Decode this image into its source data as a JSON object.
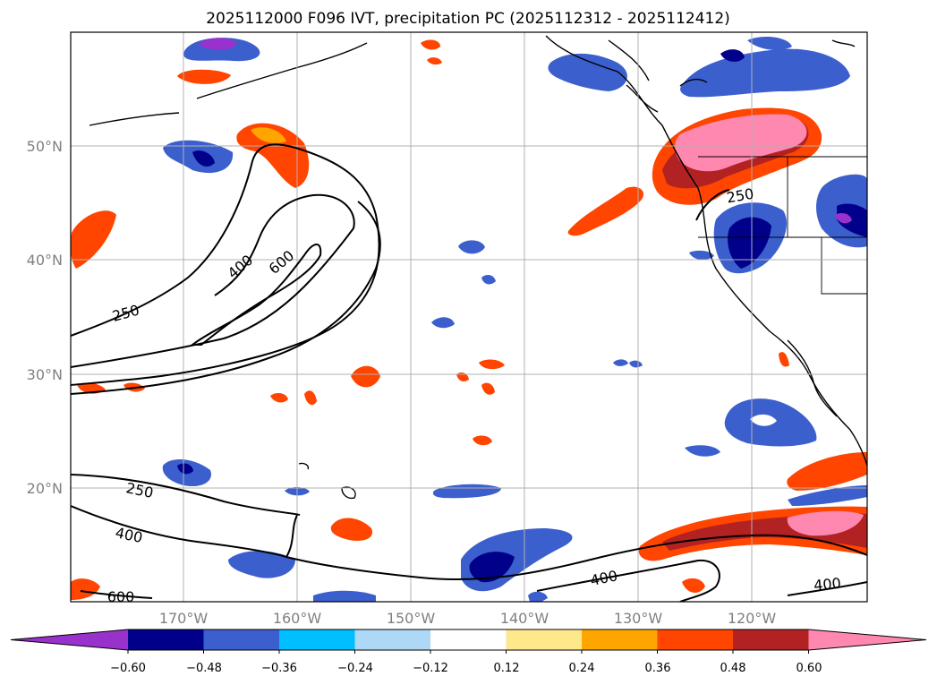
{
  "title": "2025112000 F096 IVT, precipitation PC (2025112312 - 2025112412)",
  "map": {
    "lon_labels": [
      "170°W",
      "160°W",
      "150°W",
      "140°W",
      "130°W",
      "120°W"
    ],
    "lat_labels": [
      "50°N",
      "40°N",
      "30°N",
      "20°N"
    ],
    "ivt_contour_labels": [
      "250",
      "400",
      "600",
      "250",
      "400",
      "600",
      "250",
      "400",
      "400"
    ],
    "shading_colors": {
      "land_outline": "#000000",
      "ocean": "#ffffff",
      "grid": "#b0b0b0"
    }
  },
  "colorbar": {
    "tick_labels": [
      "−0.60",
      "−0.48",
      "−0.36",
      "−0.24",
      "−0.12",
      "0.12",
      "0.24",
      "0.36",
      "0.48",
      "0.60"
    ],
    "colors": [
      "#9932cc",
      "#00008b",
      "#3b5fcd",
      "#00bfff",
      "#add8f6",
      "#ffffff",
      "#ffe88c",
      "#ffa500",
      "#ff4500",
      "#b22222",
      "#ff88b0"
    ]
  }
}
